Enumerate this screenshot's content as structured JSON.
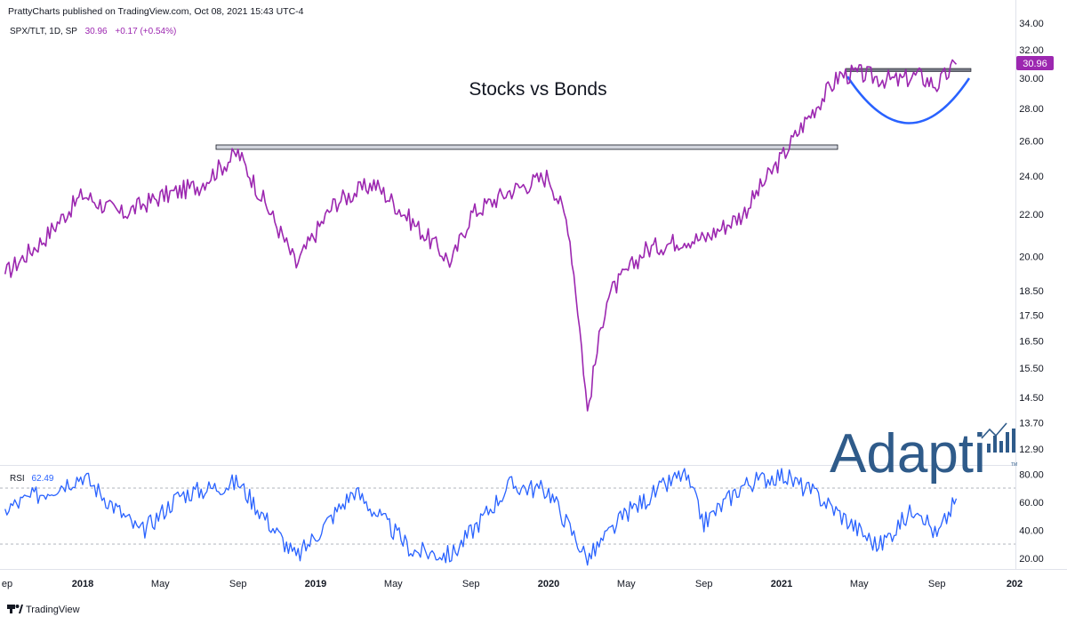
{
  "header": {
    "published_line": "PrattyCharts published on TradingView.com, Oct 08, 2021 15:43 UTC-4"
  },
  "legend": {
    "symbol": "SPX/TLT, 1D, SP",
    "last": "30.96",
    "change": "+0.17 (+0.54%)"
  },
  "annotation": {
    "title_text": "Stocks vs Bonds"
  },
  "price_axis": {
    "ticks": [
      "34.00",
      "32.00",
      "30.00",
      "28.00",
      "26.00",
      "24.00",
      "22.00",
      "20.00",
      "18.50",
      "17.50",
      "16.50",
      "15.50",
      "14.50",
      "13.70",
      "12.90"
    ],
    "last_label": "30.96"
  },
  "rsi": {
    "label": "RSI",
    "value": "62.49",
    "ticks": [
      "80.00",
      "60.00",
      "40.00",
      "20.00"
    ]
  },
  "time_axis": {
    "labels": [
      "ep",
      "2018",
      "May",
      "Sep",
      "2019",
      "May",
      "Sep",
      "2020",
      "May",
      "Sep",
      "2021",
      "May",
      "Sep",
      "202"
    ],
    "bold_labels": [
      "2018",
      "2019",
      "2020",
      "2021",
      "202"
    ]
  },
  "footer": {
    "brand": "TradingView"
  },
  "watermark": {
    "text": "Adapti",
    "tm": "TM"
  },
  "colors": {
    "price_line": "#9c27b0",
    "rsi_line": "#2962ff",
    "cup": "#2962ff",
    "resistance": "#787b86",
    "watermark": "#2f5b8a",
    "grid_dash": "#b2b5be"
  },
  "chart_data": [
    {
      "type": "line",
      "title": "Stocks vs Bonds",
      "series": [
        {
          "name": "SPX/TLT, 1D, SP"
        }
      ],
      "x": [
        "2017-09",
        "2017-11",
        "2018-01",
        "2018-03",
        "2018-05",
        "2018-07",
        "2018-09",
        "2018-10",
        "2018-12",
        "2019-02",
        "2019-04",
        "2019-06",
        "2019-08",
        "2019-09",
        "2019-11",
        "2020-01",
        "2020-02",
        "2020-03",
        "2020-04",
        "2020-06",
        "2020-08",
        "2020-09",
        "2020-11",
        "2021-01",
        "2021-02",
        "2021-03",
        "2021-04",
        "2021-05",
        "2021-06",
        "2021-07",
        "2021-08",
        "2021-09",
        "2021-10"
      ],
      "y": [
        19.2,
        20.8,
        23.0,
        22.0,
        22.9,
        23.5,
        25.3,
        23.3,
        19.6,
        22.6,
        23.6,
        21.6,
        19.7,
        22.0,
        23.2,
        24.0,
        21.5,
        14.0,
        18.2,
        20.3,
        20.8,
        20.8,
        22.0,
        25.0,
        26.8,
        28.5,
        30.2,
        30.3,
        30.0,
        29.8,
        30.2,
        29.5,
        30.96
      ],
      "last_value": 30.96,
      "change": "+0.17 (+0.54%)",
      "y_axis": {
        "scale": "log",
        "range": [
          12.4,
          34.5
        ],
        "ticks": [
          34.0,
          32.0,
          30.0,
          28.0,
          26.0,
          24.0,
          22.0,
          20.0,
          18.5,
          17.5,
          16.5,
          15.5,
          14.5,
          13.7,
          12.9
        ]
      },
      "annotations": [
        {
          "kind": "horizontal_level",
          "y": 25.5,
          "x_from": "2018-08",
          "x_to": "2021-03"
        },
        {
          "kind": "horizontal_level",
          "y": 30.4,
          "x_from": "2021-04",
          "x_to": "2021-10"
        },
        {
          "kind": "cup_arc",
          "x_from": "2021-04",
          "x_to": "2021-10",
          "bottom_y": 27.4
        }
      ]
    },
    {
      "type": "line",
      "title": "RSI",
      "series": [
        {
          "name": "RSI"
        }
      ],
      "x": [
        "2017-09",
        "2018-01",
        "2018-04",
        "2018-06",
        "2018-09",
        "2018-12",
        "2019-03",
        "2019-06",
        "2019-08",
        "2019-11",
        "2020-01",
        "2020-03",
        "2020-05",
        "2020-08",
        "2020-09",
        "2020-11",
        "2021-01",
        "2021-03",
        "2021-06",
        "2021-08",
        "2021-09",
        "2021-10"
      ],
      "y": [
        55,
        79,
        38,
        65,
        74,
        20,
        68,
        25,
        22,
        72,
        68,
        19,
        52,
        81,
        45,
        72,
        80,
        63,
        28,
        58,
        35,
        62.49
      ],
      "last_value": 62.49,
      "y_axis": {
        "range": [
          12,
          86
        ],
        "ticks": [
          80,
          60,
          40,
          20
        ]
      },
      "bands": [
        70,
        30
      ]
    }
  ]
}
